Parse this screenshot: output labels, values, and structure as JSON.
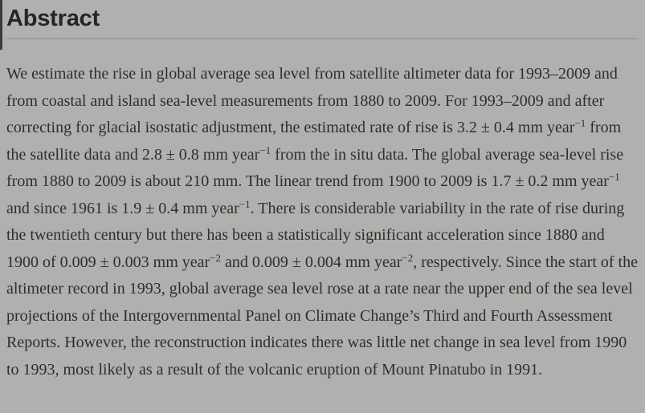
{
  "colors": {
    "background": "#b1b0ae",
    "heading_text": "#21262c",
    "body_text": "#2f2e2c",
    "divider": "#8e8d8b",
    "edge_fragment": "#3b3b3b"
  },
  "section": {
    "title": "Abstract"
  },
  "abstract": {
    "segments": [
      {
        "t": "We estimate the rise in global average sea level from satellite altimeter data for 1993–2009 and from coastal and island sea-level measurements from 1880 to 2009. For 1993–2009 and after correcting for glacial isostatic adjustment, the estimated rate of rise is 3.2 ± 0.4 mm year"
      },
      {
        "t": "−1",
        "sup": true
      },
      {
        "t": " from the satellite data and 2.8 ± 0.8 mm year"
      },
      {
        "t": "−1",
        "sup": true
      },
      {
        "t": " from the in situ data. The global average sea-level rise from 1880 to 2009 is about 210 mm. The linear trend from 1900 to 2009 is 1.7 ± 0.2 mm year"
      },
      {
        "t": "−1",
        "sup": true
      },
      {
        "t": " and since 1961 is 1.9 ± 0.4 mm year"
      },
      {
        "t": "−1",
        "sup": true
      },
      {
        "t": ". There is considerable variability in the rate of rise during the twentieth century but there has been a statistically significant acceleration since 1880 and 1900 of 0.009 ± 0.003 mm year"
      },
      {
        "t": "−2",
        "sup": true
      },
      {
        "t": " and 0.009 ± 0.004 mm year"
      },
      {
        "t": "−2",
        "sup": true
      },
      {
        "t": ", respectively. Since the start of the altimeter record in 1993, global average sea level rose at a rate near the upper end of the sea level projections of the Intergovernmental Panel on Climate Change’s Third and Fourth Assessment Reports. However, the reconstruction indicates there was little net change in sea level from 1990 to 1993, most likely as a result of the volcanic eruption of Mount Pinatubo in 1991."
      }
    ]
  }
}
